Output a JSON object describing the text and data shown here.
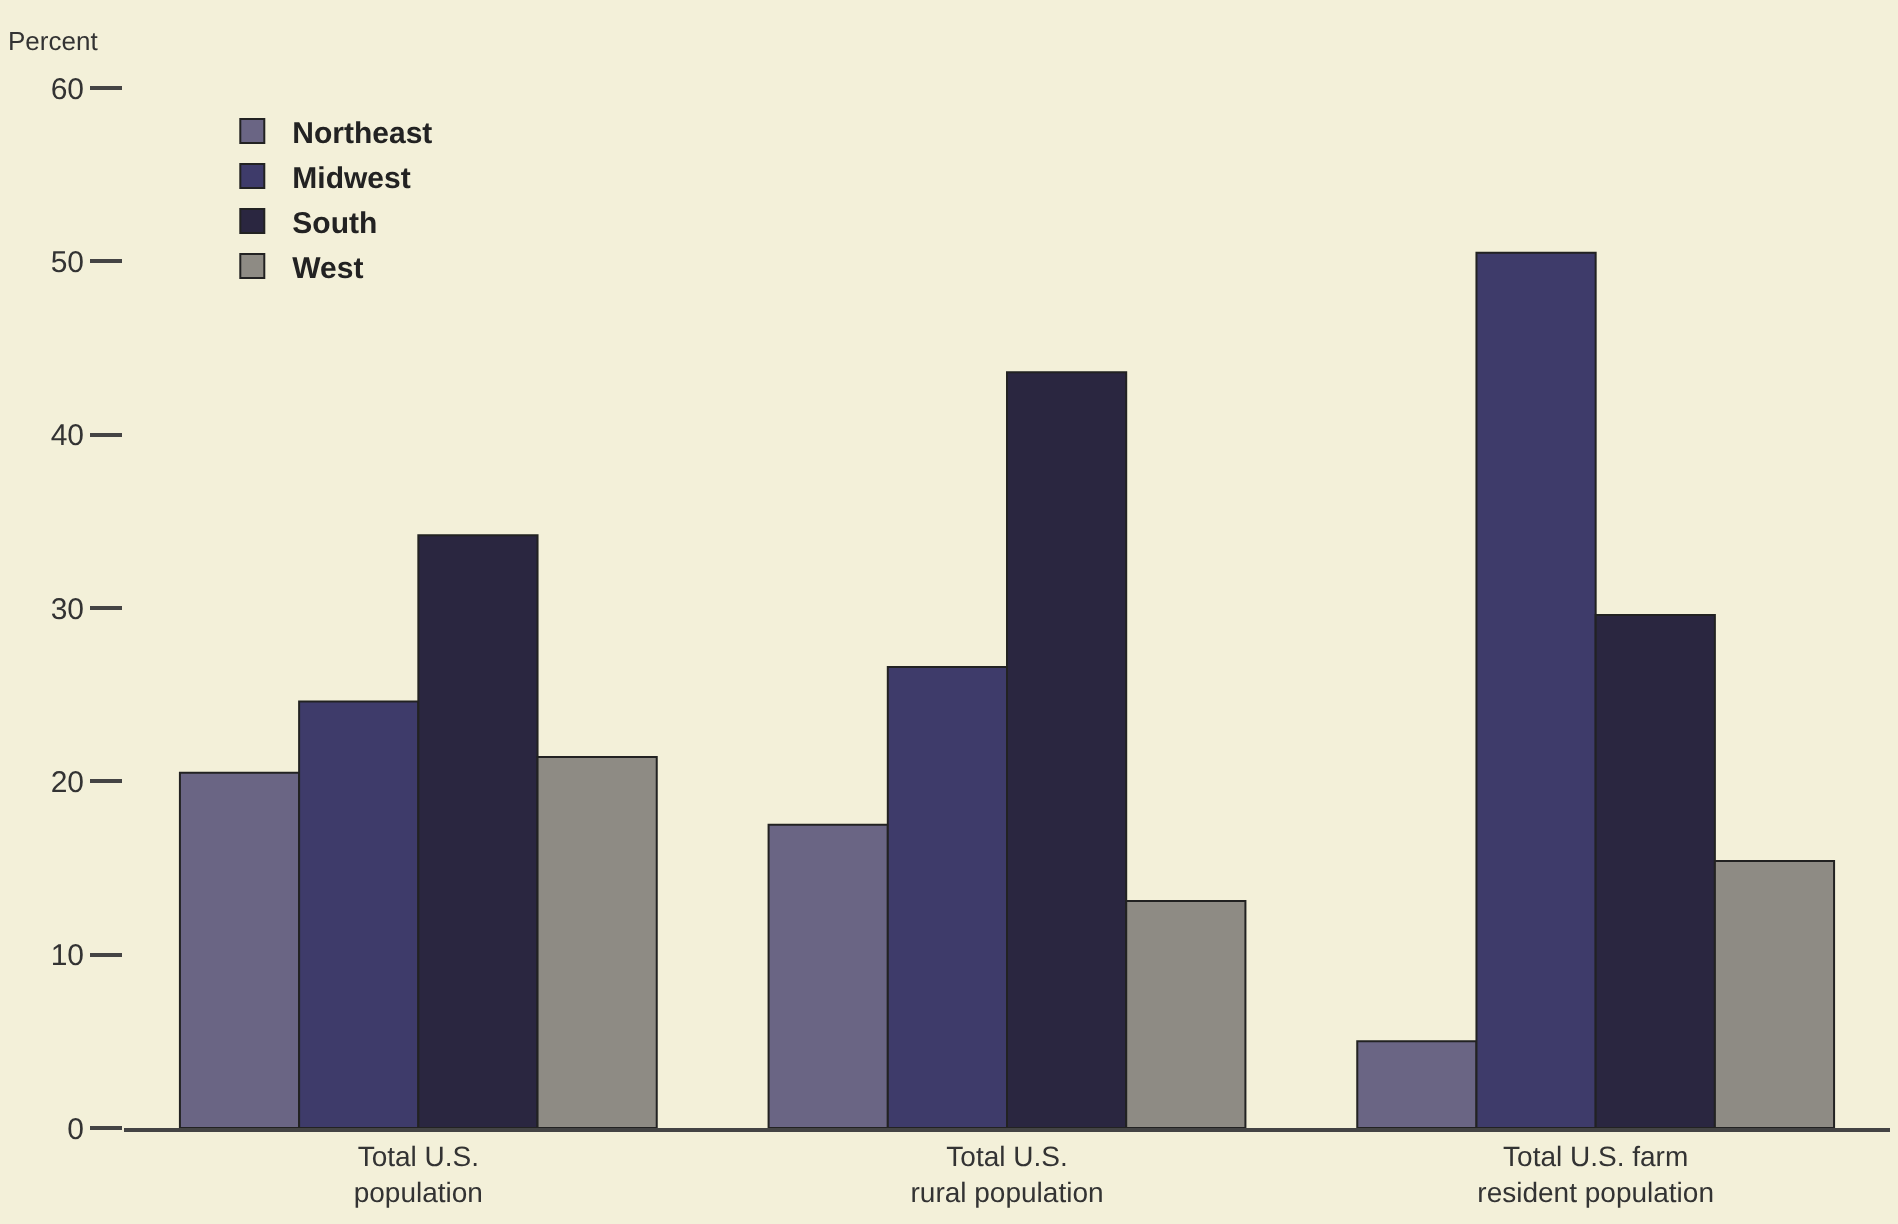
{
  "chart_data": {
    "type": "bar",
    "ylabel": "Percent",
    "categories": [
      "Total U.S.\npopulation",
      "Total U.S.\nrural population",
      "Total U.S. farm\nresident population"
    ],
    "series": [
      {
        "name": "Northeast",
        "color": "#6a6584",
        "values": [
          20.5,
          17.5,
          5.0
        ]
      },
      {
        "name": "Midwest",
        "color": "#3e3b6a",
        "values": [
          24.6,
          26.6,
          50.5
        ]
      },
      {
        "name": "South",
        "color": "#2a2640",
        "values": [
          34.2,
          43.6,
          29.6
        ]
      },
      {
        "name": "West",
        "color": "#8e8b84",
        "values": [
          21.4,
          13.1,
          15.4
        ]
      }
    ],
    "ylim": [
      0,
      60
    ],
    "yticks": [
      0,
      10,
      20,
      30,
      40,
      50,
      60
    ],
    "grid": false,
    "legend": "top left"
  }
}
